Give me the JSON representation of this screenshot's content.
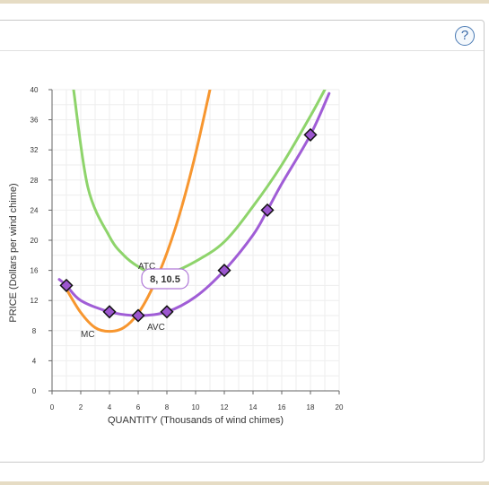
{
  "help": {
    "label": "?"
  },
  "chart_data": {
    "type": "line",
    "title": "",
    "xlabel": "QUANTITY (Thousands of wind chimes)",
    "ylabel": "PRICE (Dollars per wind chime)",
    "xlim": [
      0,
      20
    ],
    "ylim": [
      0,
      40
    ],
    "x_ticks": [
      "0",
      "2",
      "4",
      "6",
      "8",
      "10",
      "12",
      "14",
      "16",
      "18",
      "20"
    ],
    "y_ticks": [
      "0",
      "4",
      "8",
      "12",
      "16",
      "20",
      "24",
      "28",
      "32",
      "36",
      "40"
    ],
    "grid": true,
    "colors": {
      "MC": "#f7962f",
      "ATC": "#8ed46b",
      "AVC": "#a05dd6",
      "point": "#9c56cf"
    },
    "series": [
      {
        "name": "MC",
        "label": "MC",
        "x": [
          1,
          2,
          3,
          4,
          5,
          6,
          7,
          8,
          9,
          10,
          11
        ],
        "y": [
          13.5,
          10.4,
          8.4,
          7.9,
          8.4,
          10.3,
          13.7,
          18.3,
          24.2,
          31.5,
          40
        ]
      },
      {
        "name": "ATC",
        "label": "ATC",
        "x": [
          1.5,
          2.5,
          4,
          5,
          6,
          7,
          8,
          10,
          12,
          14,
          16,
          18,
          19
        ],
        "y": [
          40,
          27,
          20.5,
          18,
          16.5,
          15.6,
          15.5,
          17.2,
          19.8,
          24.5,
          30,
          36.5,
          40
        ]
      },
      {
        "name": "AVC",
        "label": "AVC",
        "x": [
          0.5,
          1,
          2,
          4,
          6,
          8,
          10,
          12,
          14,
          15,
          16,
          18,
          19.3
        ],
        "y": [
          14.8,
          14,
          12,
          10.5,
          10,
          10.5,
          12.5,
          16,
          20.7,
          24,
          27.5,
          34,
          39.5
        ]
      }
    ],
    "points": [
      {
        "x": 1,
        "y": 14
      },
      {
        "x": 4,
        "y": 10.5
      },
      {
        "x": 6,
        "y": 10
      },
      {
        "x": 8,
        "y": 10.5
      },
      {
        "x": 12,
        "y": 16
      },
      {
        "x": 15,
        "y": 24
      },
      {
        "x": 18,
        "y": 34
      }
    ],
    "tooltip": {
      "text": "8, 10.5"
    }
  }
}
